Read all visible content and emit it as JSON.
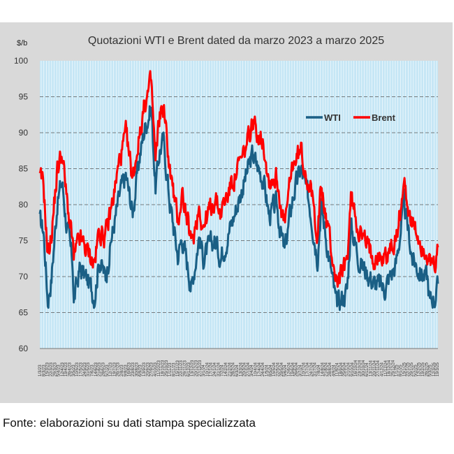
{
  "chart_data": {
    "type": "line",
    "title": "Quotazioni WTI e Brent dated da marzo 2023 a marzo 2025",
    "ylabel": "$/b",
    "xlabel": "",
    "ylim": [
      60,
      100
    ],
    "yticks": [
      "60",
      "65",
      "70",
      "75",
      "80",
      "85",
      "90",
      "95",
      "100"
    ],
    "legend_position": "top-right (inside plot)",
    "grid": true,
    "x_period": {
      "start": "3/2023",
      "end": "3/2025",
      "granularity": "daily"
    },
    "x_tick_labels_visible": [
      "1/3/23",
      "3/3/25"
    ],
    "colors": {
      "WTI": "#1a5f85",
      "Brent": "#ff0000",
      "plot_background": "#c5e6f5",
      "frame": "#d9d9d9"
    },
    "series": [
      {
        "name": "WTI",
        "anchors": [
          [
            "2023-03-01",
            77.7
          ],
          [
            "2023-03-08",
            76.5
          ],
          [
            "2023-03-16",
            66.7
          ],
          [
            "2023-03-23",
            69.9
          ],
          [
            "2023-04-03",
            80.4
          ],
          [
            "2023-04-12",
            83.3
          ],
          [
            "2023-04-20",
            77.5
          ],
          [
            "2023-05-02",
            71.7
          ],
          [
            "2023-05-04",
            66.6
          ],
          [
            "2023-05-15",
            71.1
          ],
          [
            "2023-05-30",
            69.5
          ],
          [
            "2023-06-12",
            67.3
          ],
          [
            "2023-06-21",
            72.5
          ],
          [
            "2023-07-03",
            69.8
          ],
          [
            "2023-07-14",
            75.4
          ],
          [
            "2023-07-31",
            81.8
          ],
          [
            "2023-08-10",
            84.0
          ],
          [
            "2023-08-23",
            78.9
          ],
          [
            "2023-09-05",
            86.7
          ],
          [
            "2023-09-15",
            90.8
          ],
          [
            "2023-09-27",
            93.7
          ],
          [
            "2023-10-05",
            82.3
          ],
          [
            "2023-10-13",
            87.7
          ],
          [
            "2023-10-20",
            88.8
          ],
          [
            "2023-11-01",
            80.4
          ],
          [
            "2023-11-16",
            72.9
          ],
          [
            "2023-11-24",
            75.5
          ],
          [
            "2023-12-12",
            68.6
          ],
          [
            "2023-12-26",
            75.6
          ],
          [
            "2024-01-03",
            72.7
          ],
          [
            "2024-01-24",
            75.1
          ],
          [
            "2024-02-05",
            72.8
          ],
          [
            "2024-02-29",
            78.3
          ],
          [
            "2024-03-18",
            82.7
          ],
          [
            "2024-04-05",
            86.9
          ],
          [
            "2024-04-12",
            85.7
          ],
          [
            "2024-04-25",
            83.6
          ],
          [
            "2024-05-06",
            78.5
          ],
          [
            "2024-05-20",
            79.8
          ],
          [
            "2024-06-04",
            73.2
          ],
          [
            "2024-06-20",
            81.3
          ],
          [
            "2024-07-05",
            85.0
          ],
          [
            "2024-07-22",
            79.8
          ],
          [
            "2024-08-05",
            72.9
          ],
          [
            "2024-08-12",
            80.1
          ],
          [
            "2024-09-10",
            65.8
          ],
          [
            "2024-09-30",
            68.2
          ],
          [
            "2024-10-07",
            77.1
          ],
          [
            "2024-10-25",
            71.8
          ],
          [
            "2024-11-08",
            70.5
          ],
          [
            "2024-11-20",
            69.0
          ],
          [
            "2024-12-09",
            68.4
          ],
          [
            "2024-12-31",
            71.7
          ],
          [
            "2025-01-15",
            80.0
          ],
          [
            "2025-01-31",
            72.5
          ],
          [
            "2025-02-14",
            70.7
          ],
          [
            "2025-02-28",
            69.8
          ],
          [
            "2025-03-05",
            66.3
          ],
          [
            "2025-03-10",
            67.3
          ],
          [
            "2025-03-14",
            67.2
          ],
          [
            "2025-03-20",
            68.3
          ]
        ]
      },
      {
        "name": "Brent",
        "anchors": [
          [
            "2023-03-01",
            83.5
          ],
          [
            "2023-03-08",
            82.7
          ],
          [
            "2023-03-16",
            72.9
          ],
          [
            "2023-03-23",
            75.9
          ],
          [
            "2023-04-03",
            84.9
          ],
          [
            "2023-04-12",
            87.3
          ],
          [
            "2023-04-20",
            81.1
          ],
          [
            "2023-05-02",
            74.6
          ],
          [
            "2023-05-04",
            72.2
          ],
          [
            "2023-05-15",
            75.2
          ],
          [
            "2023-05-30",
            73.5
          ],
          [
            "2023-06-12",
            71.8
          ],
          [
            "2023-06-21",
            76.4
          ],
          [
            "2023-07-03",
            75.5
          ],
          [
            "2023-07-14",
            79.6
          ],
          [
            "2023-07-31",
            86.8
          ],
          [
            "2023-08-10",
            89.5
          ],
          [
            "2023-08-23",
            83.6
          ],
          [
            "2023-09-05",
            90.0
          ],
          [
            "2023-09-15",
            94.1
          ],
          [
            "2023-09-27",
            96.9
          ],
          [
            "2023-10-05",
            85.7
          ],
          [
            "2023-10-13",
            92.7
          ],
          [
            "2023-10-20",
            93.5
          ],
          [
            "2023-11-01",
            85.0
          ],
          [
            "2023-11-16",
            77.4
          ],
          [
            "2023-11-24",
            81.8
          ],
          [
            "2023-12-12",
            74.3
          ],
          [
            "2023-12-26",
            79.9
          ],
          [
            "2024-01-03",
            76.8
          ],
          [
            "2024-01-24",
            80.9
          ],
          [
            "2024-02-05",
            78.9
          ],
          [
            "2024-02-29",
            83.7
          ],
          [
            "2024-03-18",
            86.5
          ],
          [
            "2024-04-05",
            91.2
          ],
          [
            "2024-04-12",
            90.5
          ],
          [
            "2024-04-25",
            89.0
          ],
          [
            "2024-05-06",
            83.3
          ],
          [
            "2024-05-20",
            83.9
          ],
          [
            "2024-06-04",
            76.9
          ],
          [
            "2024-06-20",
            85.8
          ],
          [
            "2024-07-05",
            87.4
          ],
          [
            "2024-07-22",
            82.4
          ],
          [
            "2024-08-05",
            76.3
          ],
          [
            "2024-08-12",
            82.3
          ],
          [
            "2024-09-10",
            69.2
          ],
          [
            "2024-09-30",
            71.8
          ],
          [
            "2024-10-07",
            80.9
          ],
          [
            "2024-10-25",
            76.0
          ],
          [
            "2024-11-08",
            73.9
          ],
          [
            "2024-11-20",
            73.1
          ],
          [
            "2024-12-09",
            72.6
          ],
          [
            "2024-12-31",
            75.1
          ],
          [
            "2025-01-15",
            82.9
          ],
          [
            "2025-01-31",
            76.9
          ],
          [
            "2025-02-14",
            75.0
          ],
          [
            "2025-02-28",
            73.3
          ],
          [
            "2025-03-05",
            70.9
          ],
          [
            "2025-03-10",
            71.3
          ],
          [
            "2025-03-14",
            71.3
          ],
          [
            "2025-03-20",
            73.2
          ]
        ]
      }
    ]
  },
  "source": "Fonte: elaborazioni su dati stampa specializzata"
}
